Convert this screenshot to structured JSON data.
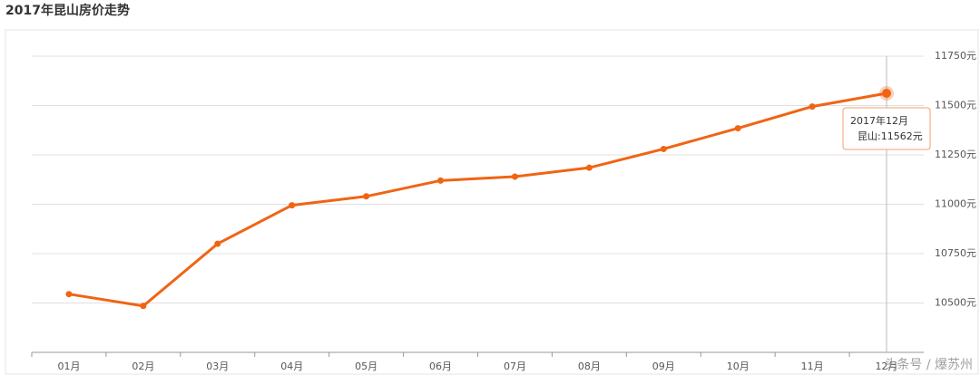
{
  "chart_data": {
    "type": "line",
    "title": "2017年昆山房价走势",
    "categories": [
      "01月",
      "02月",
      "03月",
      "04月",
      "05月",
      "06月",
      "07月",
      "08月",
      "09月",
      "10月",
      "11月",
      "12月"
    ],
    "values": [
      10545,
      10485,
      10800,
      10995,
      11040,
      11120,
      11140,
      11185,
      11280,
      11385,
      11495,
      11562
    ],
    "color": "#f06414",
    "ylim": [
      10250,
      11750
    ],
    "yticks": [
      {
        "value": 10500,
        "label": "10500元"
      },
      {
        "value": 10750,
        "label": "10750元"
      },
      {
        "value": 11000,
        "label": "11000元"
      },
      {
        "value": 11250,
        "label": "11250元"
      },
      {
        "value": 11500,
        "label": "11500元"
      },
      {
        "value": 11750,
        "label": "11750元"
      }
    ],
    "grid": true,
    "tooltip": {
      "title": "2017年12月",
      "label": "昆山:11562元"
    },
    "watermark": "头条号 / 爆苏州"
  }
}
